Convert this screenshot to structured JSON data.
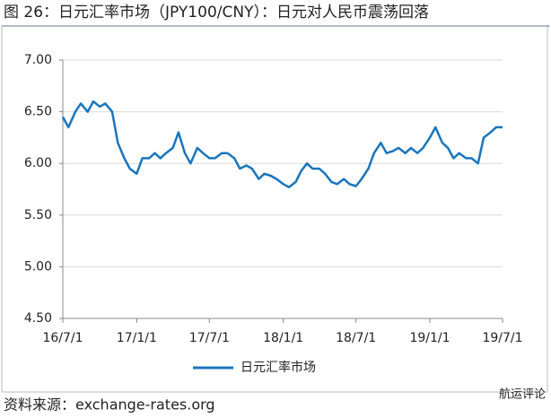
{
  "chart_data": {
    "type": "line",
    "title": "图 26：日元汇率市场（JPY100/CNY）：日元对人民币震荡回落",
    "source": "资料来源：exchange-rates.org",
    "watermark": "航运评论",
    "x": [
      "16/7/1",
      "16/7/15",
      "16/8/1",
      "16/8/15",
      "16/9/1",
      "16/9/15",
      "16/10/1",
      "16/10/15",
      "16/11/1",
      "16/11/15",
      "16/12/1",
      "16/12/15",
      "17/1/1",
      "17/1/15",
      "17/2/1",
      "17/2/15",
      "17/3/1",
      "17/3/15",
      "17/4/1",
      "17/4/15",
      "17/5/1",
      "17/5/15",
      "17/6/1",
      "17/6/15",
      "17/7/1",
      "17/7/15",
      "17/8/1",
      "17/8/15",
      "17/9/1",
      "17/9/15",
      "17/10/1",
      "17/10/15",
      "17/11/1",
      "17/11/15",
      "17/12/1",
      "17/12/15",
      "18/1/1",
      "18/1/15",
      "18/2/1",
      "18/2/15",
      "18/3/1",
      "18/3/15",
      "18/4/1",
      "18/4/15",
      "18/5/1",
      "18/5/15",
      "18/6/1",
      "18/6/15",
      "18/7/1",
      "18/7/15",
      "18/8/1",
      "18/8/15",
      "18/9/1",
      "18/9/15",
      "18/10/1",
      "18/10/15",
      "18/11/1",
      "18/11/15",
      "18/12/1",
      "18/12/15",
      "19/1/1",
      "19/1/15",
      "19/2/1",
      "19/2/15",
      "19/3/1",
      "19/3/15",
      "19/4/1",
      "19/4/15",
      "19/5/1",
      "19/5/15",
      "19/6/1",
      "19/6/15",
      "19/7/1"
    ],
    "series": [
      {
        "name": "日元汇率市场",
        "color": "#1a75bc",
        "values": [
          6.45,
          6.35,
          6.5,
          6.58,
          6.5,
          6.6,
          6.55,
          6.58,
          6.5,
          6.2,
          6.05,
          5.95,
          5.9,
          6.05,
          6.05,
          6.1,
          6.05,
          6.1,
          6.15,
          6.3,
          6.1,
          6.0,
          6.15,
          6.1,
          6.05,
          6.05,
          6.1,
          6.1,
          6.05,
          5.95,
          5.98,
          5.95,
          5.85,
          5.9,
          5.88,
          5.85,
          5.8,
          5.77,
          5.82,
          5.93,
          6.0,
          5.95,
          5.95,
          5.9,
          5.82,
          5.8,
          5.85,
          5.8,
          5.78,
          5.85,
          5.95,
          6.1,
          6.2,
          6.1,
          6.12,
          6.15,
          6.1,
          6.15,
          6.1,
          6.15,
          6.25,
          6.35,
          6.2,
          6.15,
          6.05,
          6.1,
          6.05,
          6.05,
          6.0,
          6.25,
          6.3,
          6.35,
          6.35
        ]
      }
    ],
    "xlim": [
      "16/7/1",
      "19/7/1"
    ],
    "xticks": [
      "16/7/1",
      "17/1/1",
      "17/7/1",
      "18/1/1",
      "18/7/1",
      "19/1/1",
      "19/7/1"
    ],
    "ylim": [
      4.5,
      7
    ],
    "yticks": [
      {
        "value": 4.5,
        "label": "4.50"
      },
      {
        "value": 5,
        "label": "5.00"
      },
      {
        "value": 5.5,
        "label": "5.50"
      },
      {
        "value": 6,
        "label": "6.00"
      },
      {
        "value": 6.5,
        "label": "6.50"
      },
      {
        "value": 7,
        "label": "7.00"
      }
    ],
    "grid": true
  }
}
